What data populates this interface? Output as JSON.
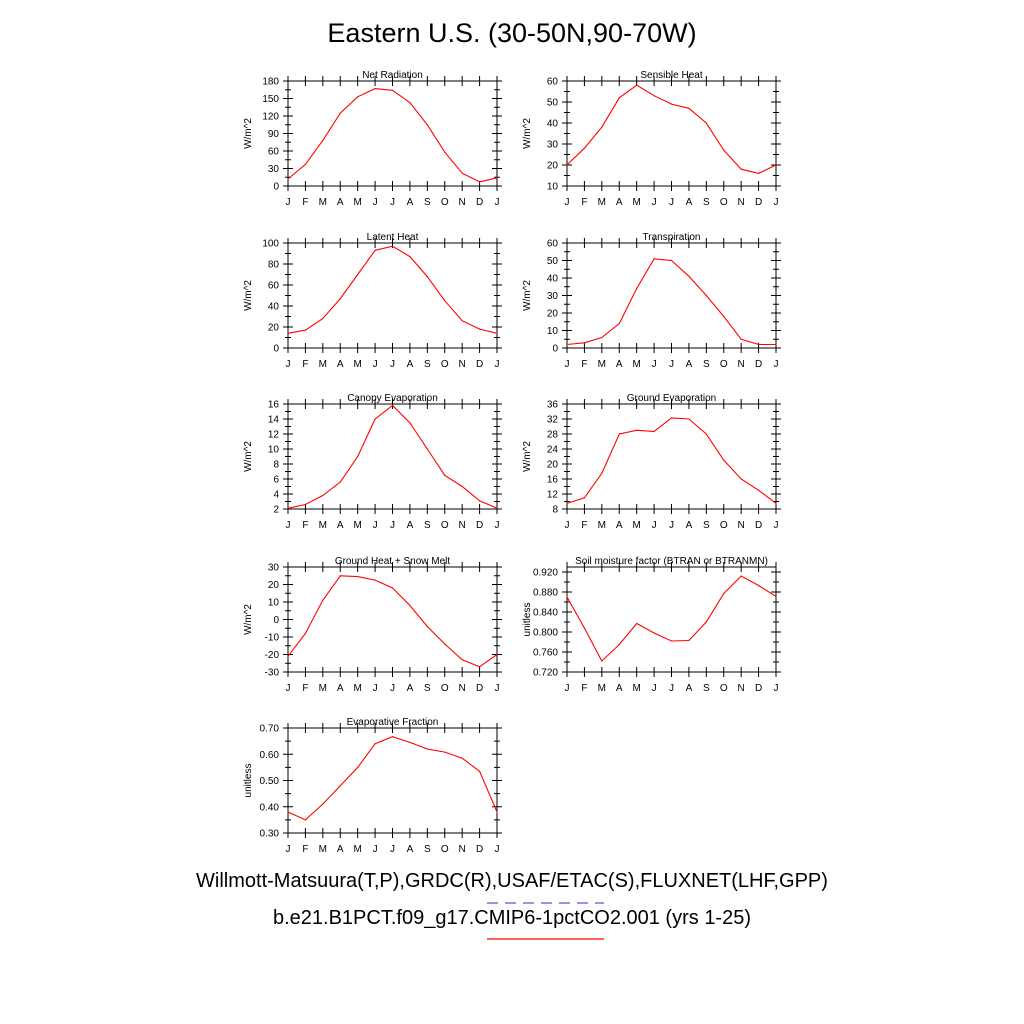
{
  "title": "Eastern U.S. (30-50N,90-70W)",
  "months": [
    "J",
    "F",
    "M",
    "A",
    "M",
    "J",
    "J",
    "A",
    "S",
    "O",
    "N",
    "D",
    "J"
  ],
  "legend": [
    {
      "text": "Willmott-Matsuura(T,P),GRDC(R),USAF/ETAC(S),FLUXNET(LHF,GPP)",
      "color": "#5555dd",
      "style": "dashed"
    },
    {
      "text": "b.e21.B1PCT.f09_g17.CMIP6-1pctCO2.001 (yrs 1-25)",
      "color": "#ff0000",
      "style": "solid"
    }
  ],
  "chart_data": [
    {
      "type": "line",
      "title": "Net Radiation",
      "ylabel": "W/m^2",
      "ylim": [
        0,
        180
      ],
      "yticks": [
        0,
        30,
        60,
        90,
        120,
        150,
        180
      ],
      "ytick_labels": [
        "0",
        "30",
        "60",
        "90",
        "120",
        "150",
        "180"
      ],
      "series": [
        {
          "values": [
            12,
            37,
            78,
            125,
            153,
            167,
            164,
            143,
            105,
            58,
            22,
            7,
            14
          ],
          "color": "#ff0000"
        }
      ]
    },
    {
      "type": "line",
      "title": "Sensible Heat",
      "ylabel": "W/m^2",
      "ylim": [
        10,
        60
      ],
      "yticks": [
        10,
        20,
        30,
        40,
        50,
        60
      ],
      "ytick_labels": [
        "10",
        "20",
        "30",
        "40",
        "50",
        "60"
      ],
      "series": [
        {
          "values": [
            20,
            28,
            38,
            52,
            58,
            53,
            49,
            47,
            40,
            27,
            18,
            16,
            20
          ],
          "color": "#ff0000"
        }
      ]
    },
    {
      "type": "line",
      "title": "Latent Heat",
      "ylabel": "W/m^2",
      "ylim": [
        0,
        100
      ],
      "yticks": [
        0,
        20,
        40,
        60,
        80,
        100
      ],
      "ytick_labels": [
        "0",
        "20",
        "40",
        "60",
        "80",
        "100"
      ],
      "series": [
        {
          "values": [
            14,
            17,
            28,
            47,
            70,
            93,
            97,
            87,
            68,
            45,
            26,
            18,
            14
          ],
          "color": "#ff0000"
        }
      ]
    },
    {
      "type": "line",
      "title": "Transpiration",
      "ylabel": "W/m^2",
      "ylim": [
        0,
        60
      ],
      "yticks": [
        0,
        10,
        20,
        30,
        40,
        50,
        60
      ],
      "ytick_labels": [
        "0",
        "10",
        "20",
        "30",
        "40",
        "50",
        "60"
      ],
      "series": [
        {
          "values": [
            2,
            3,
            6,
            14,
            34,
            51,
            50,
            41,
            30,
            18,
            5,
            2,
            2
          ],
          "color": "#ff0000"
        }
      ]
    },
    {
      "type": "line",
      "title": "Canopy Evaporation",
      "ylabel": "W/m^2",
      "ylim": [
        2,
        16
      ],
      "yticks": [
        2,
        4,
        6,
        8,
        10,
        12,
        14,
        16
      ],
      "ytick_labels": [
        "2",
        "4",
        "6",
        "8",
        "10",
        "12",
        "14",
        "16"
      ],
      "series": [
        {
          "values": [
            2.1,
            2.6,
            3.8,
            5.6,
            9.0,
            14.0,
            15.8,
            13.5,
            10.0,
            6.5,
            5.0,
            3.1,
            2.1
          ],
          "color": "#ff0000"
        }
      ]
    },
    {
      "type": "line",
      "title": "Ground Evaporation",
      "ylabel": "W/m^2",
      "ylim": [
        8,
        36
      ],
      "yticks": [
        8,
        12,
        16,
        20,
        24,
        28,
        32,
        36
      ],
      "ytick_labels": [
        "8",
        "12",
        "16",
        "20",
        "24",
        "28",
        "32",
        "36"
      ],
      "series": [
        {
          "values": [
            9.5,
            11,
            17.5,
            28,
            29,
            28.7,
            32.3,
            32,
            28,
            21,
            16,
            13,
            9.5
          ],
          "color": "#ff0000"
        }
      ]
    },
    {
      "type": "line",
      "title": "Ground Heat + Snow Melt",
      "ylabel": "W/m^2",
      "ylim": [
        -30,
        30
      ],
      "yticks": [
        -30,
        -20,
        -10,
        0,
        10,
        20,
        30
      ],
      "ytick_labels": [
        "-30",
        "-20",
        "-10",
        "0",
        "10",
        "20",
        "30"
      ],
      "series": [
        {
          "values": [
            -21,
            -8,
            11,
            25,
            24.5,
            22.5,
            18,
            8,
            -4,
            -14,
            -23,
            -27,
            -20
          ],
          "color": "#ff0000"
        }
      ]
    },
    {
      "type": "line",
      "title": "Soil moisture factor (BTRAN or BTRANMN)",
      "ylabel": "unitless",
      "ylim": [
        0.72,
        0.93
      ],
      "yticks": [
        0.72,
        0.76,
        0.8,
        0.84,
        0.88,
        0.92
      ],
      "ytick_labels": [
        "0.720",
        "0.760",
        "0.800",
        "0.840",
        "0.880",
        "0.920"
      ],
      "series": [
        {
          "values": [
            0.87,
            0.808,
            0.742,
            0.775,
            0.817,
            0.798,
            0.782,
            0.783,
            0.82,
            0.877,
            0.912,
            0.893,
            0.871
          ],
          "color": "#ff0000"
        }
      ]
    },
    {
      "type": "line",
      "title": "Evaporative Fraction",
      "ylabel": "unitless",
      "ylim": [
        0.3,
        0.7
      ],
      "yticks": [
        0.3,
        0.4,
        0.5,
        0.6,
        0.7
      ],
      "ytick_labels": [
        "0.30",
        "0.40",
        "0.50",
        "0.60",
        "0.70"
      ],
      "series": [
        {
          "values": [
            0.38,
            0.35,
            0.41,
            0.48,
            0.55,
            0.64,
            0.667,
            0.645,
            0.62,
            0.608,
            0.585,
            0.535,
            0.38
          ],
          "color": "#ff0000"
        }
      ]
    }
  ]
}
